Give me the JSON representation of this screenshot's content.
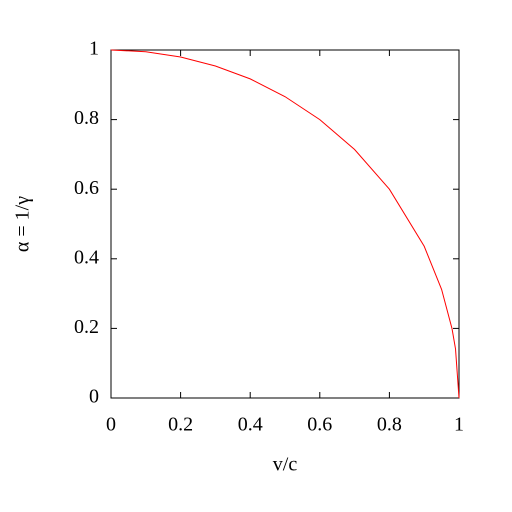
{
  "chart_data": {
    "type": "line",
    "x_label": "v/c",
    "y_label": "α = 1/γ",
    "x": [
      0,
      0.1,
      0.2,
      0.3,
      0.4,
      0.5,
      0.6,
      0.7,
      0.8,
      0.9,
      0.95,
      0.98,
      0.99,
      1
    ],
    "series": [
      {
        "color": "#ff0000",
        "values": [
          1,
          0.995,
          0.98,
          0.954,
          0.917,
          0.866,
          0.8,
          0.714,
          0.6,
          0.436,
          0.312,
          0.199,
          0.141,
          0
        ]
      }
    ],
    "xlim": [
      0,
      1
    ],
    "ylim": [
      0,
      1
    ],
    "xticks": [
      0,
      0.2,
      0.4,
      0.6,
      0.8,
      1
    ],
    "yticks": [
      0,
      0.2,
      0.4,
      0.6,
      0.8,
      1
    ]
  }
}
